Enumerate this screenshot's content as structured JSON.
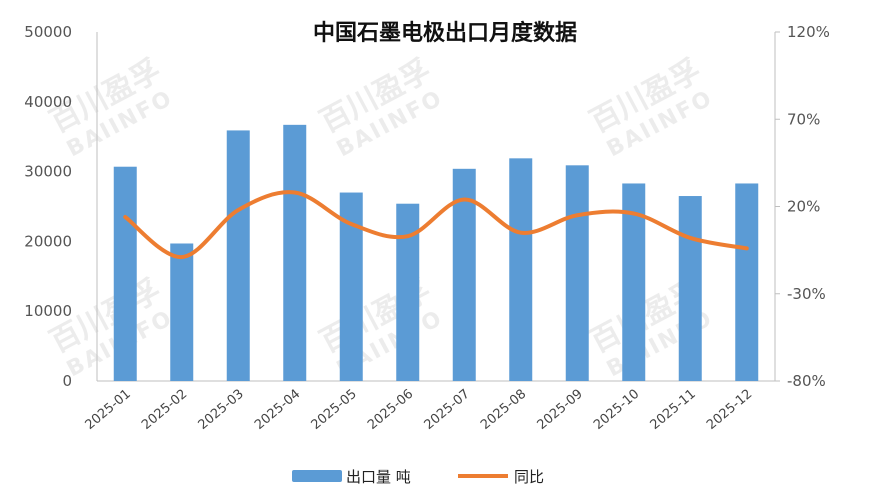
{
  "chart_data": {
    "type": "bar",
    "title": "中国石墨电极出口月度数据",
    "categories": [
      "2025-01",
      "2025-02",
      "2025-03",
      "2025-04",
      "2025-05",
      "2025-06",
      "2025-07",
      "2025-08",
      "2025-09",
      "2025-10",
      "2025-11",
      "2025-12"
    ],
    "series": [
      {
        "name": "出口量 吨",
        "type": "bar",
        "axis": "left",
        "color": "#5B9BD5",
        "values": [
          30700,
          19700,
          35900,
          36700,
          27000,
          25400,
          30400,
          31900,
          30900,
          28300,
          26500,
          28300
        ]
      },
      {
        "name": "同比",
        "type": "line",
        "axis": "right",
        "color": "#ED7D31",
        "values": [
          14,
          -9,
          18,
          28,
          10,
          3,
          24,
          5,
          15,
          16,
          2,
          -4
        ]
      }
    ],
    "left_axis": {
      "min": 0,
      "max": 50000,
      "ticks": [
        "0",
        "10000",
        "20000",
        "30000",
        "40000",
        "50000"
      ]
    },
    "right_axis": {
      "min": -80,
      "max": 120,
      "ticks": [
        "-80%",
        "-30%",
        "20%",
        "70%",
        "120%"
      ]
    },
    "legend_position": "bottom",
    "watermark": {
      "cn": "百川盈孚",
      "en": "BAIINFO"
    }
  }
}
